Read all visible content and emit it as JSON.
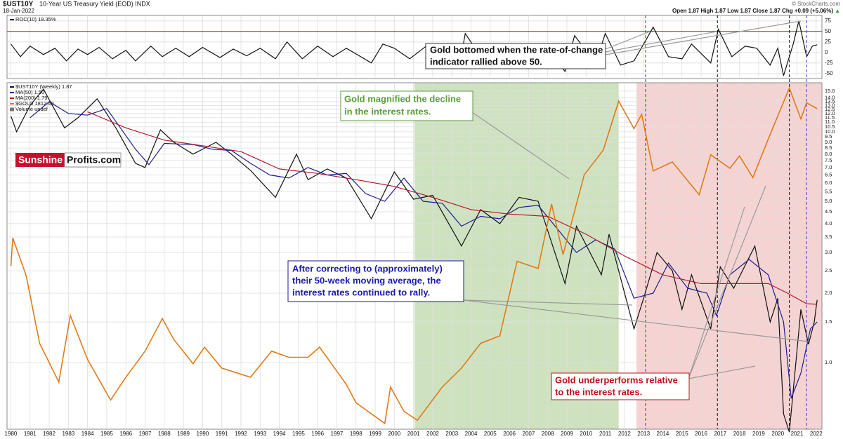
{
  "header": {
    "title": "$UST10Y",
    "subtitle": "10-Year US Treasury Yield (EOD) INDX",
    "date": "18-Jan-2022",
    "copyright": "© StockCharts.com",
    "quote": "Open 1.87 High 1.87 Low 1.87 Close 1.87 Chg +0.09 (+5.06%)",
    "chg_arrow": "▲"
  },
  "logo": {
    "part1": "Sunshine",
    "part2": "Profits.com"
  },
  "chart_data": [
    {
      "type": "line",
      "xlim": [
        1979.8,
        2022.3
      ],
      "ylim": [
        -62,
        88
      ],
      "yticks": [
        -50,
        -25,
        0,
        25,
        50,
        75
      ],
      "grid": true,
      "reference_line": {
        "value": 50,
        "color": "#d9001b"
      },
      "annotations": [
        {
          "lines": [
            "Gold bottomed when the rate-of-change",
            "indicator rallied above 50."
          ],
          "color": "#111111"
        }
      ],
      "series": [
        {
          "name": "ROC(10) 18.35%",
          "color": "#111111",
          "x": [
            1980.0,
            1980.5,
            1981.0,
            1981.7,
            1982.3,
            1982.9,
            1983.5,
            1984.0,
            1984.6,
            1985.3,
            1986.0,
            1986.5,
            1987.3,
            1987.9,
            1988.6,
            1989.3,
            1990.0,
            1990.9,
            1991.6,
            1992.3,
            1993.0,
            1993.8,
            1994.4,
            1995.2,
            1996.0,
            1996.8,
            1997.5,
            1998.8,
            1999.4,
            2000.0,
            2000.8,
            2001.8,
            2002.5,
            2003.4,
            2003.7,
            2004.5,
            2005.3,
            2006.0,
            2007.0,
            2007.8,
            2008.9,
            2009.4,
            2010.5,
            2011.0,
            2011.8,
            2012.5,
            2013.0,
            2013.5,
            2014.3,
            2015.0,
            2015.5,
            2016.5,
            2016.9,
            2017.6,
            2018.3,
            2018.9,
            2019.6,
            2020.0,
            2020.3,
            2020.8,
            2021.1,
            2021.5,
            2021.8,
            2022.05
          ],
          "values": [
            20,
            -10,
            15,
            -5,
            10,
            -20,
            8,
            -5,
            12,
            -15,
            5,
            -20,
            15,
            -10,
            10,
            -10,
            12,
            -12,
            8,
            -8,
            10,
            -15,
            25,
            -15,
            15,
            -10,
            10,
            -25,
            20,
            10,
            -15,
            20,
            -18,
            -30,
            45,
            -10,
            10,
            15,
            -10,
            15,
            -45,
            40,
            -25,
            45,
            -30,
            -20,
            20,
            60,
            -10,
            -15,
            20,
            -25,
            55,
            -10,
            15,
            10,
            -30,
            10,
            -55,
            20,
            75,
            -10,
            15,
            18.35
          ]
        }
      ]
    },
    {
      "type": "line",
      "log_scale": true,
      "xlim": [
        1979.8,
        2022.3
      ],
      "ylim": [
        0.515,
        16.3
      ],
      "y2lim": [
        246,
        2130
      ],
      "grid": true,
      "xticks": [
        1980,
        1981,
        1982,
        1983,
        1984,
        1985,
        1986,
        1987,
        1988,
        1989,
        1990,
        1991,
        1992,
        1993,
        1994,
        1995,
        1996,
        1997,
        1998,
        1999,
        2000,
        2001,
        2002,
        2003,
        2004,
        2005,
        2006,
        2007,
        2008,
        2009,
        2010,
        2011,
        2012,
        2013,
        2014,
        2015,
        2016,
        2017,
        2018,
        2019,
        2020,
        2021,
        2022
      ],
      "yticks": [
        {
          "value": 1,
          "label": "1.0"
        },
        1.5,
        {
          "value": 2,
          "label": "2.0"
        },
        2.5,
        {
          "value": 3,
          "label": "3.0"
        },
        3.5,
        {
          "value": 4,
          "label": "4.0"
        },
        4.5,
        {
          "value": 5,
          "label": "5.0"
        },
        5.5,
        {
          "value": 6,
          "label": "6.0"
        },
        6.5,
        {
          "value": 7,
          "label": "7.0"
        },
        7.5,
        {
          "value": 8,
          "label": "8.0"
        },
        8.5,
        {
          "value": 9,
          "label": "9.0"
        },
        9.5,
        {
          "value": 10,
          "label": "10.0"
        },
        10.5,
        {
          "value": 11,
          "label": "11.0"
        },
        11.5,
        {
          "value": 12,
          "label": "12.0"
        },
        12.5,
        {
          "value": 13,
          "label": "13.0"
        },
        13.5,
        {
          "value": 14,
          "label": "14.0"
        },
        {
          "value": 15,
          "label": "15.0"
        }
      ],
      "shaded_regions": [
        {
          "from": 2001.05,
          "to": 2011.7,
          "color": "#cfe2c0"
        },
        {
          "from": 2012.63,
          "to": 2022.3,
          "color": "#f6d3d3"
        }
      ],
      "vlines": [
        {
          "x": 2013.1,
          "color": "#3b3bd6"
        },
        {
          "x": 2016.85,
          "color": "#111111"
        },
        {
          "x": 2020.6,
          "color": "#111111"
        },
        {
          "x": 2021.5,
          "color": "#3b3bd6"
        }
      ],
      "legend_extra": "Volume undef",
      "annotations": [
        {
          "lines": [
            "Gold magnified the decline",
            "in the interest rates."
          ],
          "color": "#5a9e3a"
        },
        {
          "lines": [
            "After correcting to (approximately)",
            "their 50-week moving average, the",
            "interest rates continued to rally."
          ],
          "color": "#1a1aa8"
        },
        {
          "lines": [
            "Gold underperforms relative",
            "to the interest rates."
          ],
          "color": "#c0121e"
        }
      ],
      "series": [
        {
          "name": "$UST10Y (Weekly) 1.87",
          "color": "#111111",
          "x": [
            1980.0,
            1980.3,
            1981.0,
            1981.7,
            1982.8,
            1983.5,
            1984.5,
            1985.5,
            1986.5,
            1987.0,
            1987.8,
            1988.5,
            1989.5,
            1990.7,
            1991.5,
            1992.5,
            1993.8,
            1994.9,
            1995.5,
            1996.5,
            1997.5,
            1998.8,
            2000.0,
            2001.0,
            2002.0,
            2003.5,
            2004.5,
            2005.5,
            2006.5,
            2007.5,
            2008.9,
            2009.5,
            2010.8,
            2011.2,
            2012.5,
            2013.0,
            2013.7,
            2014.5,
            2015.0,
            2015.5,
            2016.5,
            2017.0,
            2017.7,
            2018.8,
            2019.6,
            2020.0,
            2020.3,
            2020.6,
            2021.2,
            2021.6,
            2021.9,
            2022.05
          ],
          "values": [
            11.7,
            10.0,
            13.0,
            15.3,
            10.4,
            11.5,
            13.9,
            10.3,
            7.3,
            7.0,
            10.2,
            9.0,
            8.0,
            9.0,
            8.0,
            6.8,
            5.2,
            8.0,
            6.2,
            6.9,
            6.3,
            4.2,
            6.7,
            5.1,
            5.3,
            3.2,
            4.6,
            4.0,
            5.2,
            5.0,
            2.2,
            3.9,
            2.4,
            3.6,
            1.4,
            1.9,
            3.0,
            2.5,
            1.7,
            2.4,
            1.4,
            2.6,
            2.1,
            3.2,
            1.5,
            1.9,
            0.6,
            0.5,
            1.7,
            1.2,
            1.5,
            1.87
          ]
        },
        {
          "name": "MA(50) 1.50",
          "color": "#1d1d8f",
          "x": [
            1981.0,
            1982.0,
            1983.0,
            1984.0,
            1985.0,
            1986.5,
            1987.2,
            1988.0,
            1989.5,
            1990.5,
            1991.5,
            1992.5,
            1993.5,
            1994.5,
            1995.5,
            1996.5,
            1997.5,
            1998.5,
            1999.5,
            2000.5,
            2001.5,
            2002.5,
            2003.5,
            2004.5,
            2005.5,
            2006.5,
            2007.5,
            2008.5,
            2009.5,
            2010.5,
            2011.5,
            2012.5,
            2013.5,
            2014.3,
            2015.3,
            2016.3,
            2016.8,
            2017.5,
            2018.5,
            2019.5,
            2020.3,
            2020.7,
            2021.2,
            2021.7,
            2022.05
          ],
          "values": [
            11.5,
            13.5,
            12.0,
            11.8,
            12.6,
            8.4,
            7.2,
            8.9,
            8.8,
            8.4,
            8.3,
            7.3,
            6.5,
            6.3,
            7.0,
            6.5,
            6.6,
            5.4,
            5.0,
            6.3,
            5.0,
            4.9,
            3.9,
            4.3,
            4.2,
            4.7,
            4.8,
            3.8,
            3.0,
            3.4,
            3.1,
            1.9,
            2.0,
            2.7,
            2.1,
            2.0,
            1.6,
            2.4,
            2.8,
            2.4,
            1.5,
            0.7,
            0.9,
            1.4,
            1.5
          ]
        },
        {
          "name": "MA(200) 1.79",
          "color": "#b01c2e",
          "x": [
            1984.0,
            1986.0,
            1988.0,
            1990.0,
            1992.0,
            1994.0,
            1996.0,
            1998.0,
            2000.0,
            2002.0,
            2004.0,
            2006.0,
            2008.0,
            2010.0,
            2012.0,
            2014.0,
            2016.0,
            2018.0,
            2019.5,
            2020.5,
            2021.5,
            2022.05
          ],
          "values": [
            12.2,
            10.4,
            9.2,
            8.7,
            8.2,
            6.9,
            6.6,
            6.2,
            5.8,
            5.2,
            4.6,
            4.4,
            4.3,
            3.6,
            2.9,
            2.4,
            2.2,
            2.2,
            2.2,
            2.0,
            1.8,
            1.79
          ]
        },
        {
          "name": "$GOLD 1812.40",
          "color": "#e07b18",
          "axis": "y2",
          "x": [
            1980.0,
            1980.1,
            1980.8,
            1981.5,
            1982.5,
            1983.1,
            1984.0,
            1985.2,
            1986.0,
            1987.0,
            1987.9,
            1988.5,
            1989.5,
            1990.1,
            1991.0,
            1992.5,
            1993.6,
            1994.5,
            1995.5,
            1996.1,
            1997.5,
            1998.0,
            1999.5,
            1999.8,
            2000.5,
            2001.2,
            2002.5,
            2003.5,
            2004.5,
            2005.5,
            2006.4,
            2007.5,
            2008.2,
            2008.8,
            2009.9,
            2010.9,
            2011.7,
            2012.5,
            2012.9,
            2013.5,
            2014.5,
            2015.9,
            2016.5,
            2017.5,
            2018.0,
            2018.7,
            2019.5,
            2020.6,
            2021.2,
            2021.5,
            2022.05
          ],
          "values": [
            680,
            810,
            640,
            420,
            330,
            500,
            380,
            295,
            340,
            400,
            490,
            430,
            370,
            410,
            360,
            340,
            400,
            385,
            385,
            410,
            325,
            290,
            255,
            320,
            275,
            260,
            320,
            360,
            420,
            440,
            700,
            670,
            1000,
            730,
            1200,
            1400,
            1900,
            1600,
            1750,
            1230,
            1300,
            1060,
            1360,
            1250,
            1350,
            1180,
            1500,
            2060,
            1700,
            1880,
            1812.4
          ]
        }
      ]
    }
  ]
}
